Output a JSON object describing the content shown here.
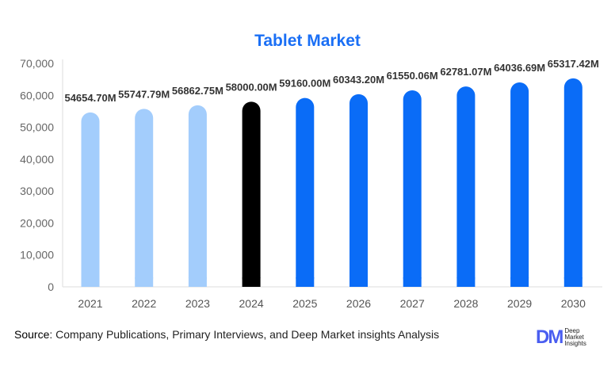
{
  "chart_data": {
    "type": "bar",
    "title": "Tablet Market",
    "categories": [
      "2021",
      "2022",
      "2023",
      "2024",
      "2025",
      "2026",
      "2027",
      "2028",
      "2029",
      "2030"
    ],
    "values": [
      54654.7,
      55747.79,
      56862.75,
      58000.0,
      59160.0,
      60343.2,
      61550.06,
      62781.07,
      64036.69,
      65317.42
    ],
    "data_labels": [
      "54654.70M",
      "55747.79M",
      "56862.75M",
      "58000.00M",
      "59160.00M",
      "60343.20M",
      "61550.06M",
      "62781.07M",
      "64036.69M",
      "65317.42M"
    ],
    "yticks": [
      "0",
      "10,000",
      "20,000",
      "30,000",
      "40,000",
      "50,000",
      "60,000",
      "70,000"
    ],
    "ylim": [
      0,
      70000
    ],
    "grid": false,
    "colors": {
      "historical": "#a3cdfc",
      "base_year": "#000000",
      "forecast": "#0a6cf7"
    },
    "bar_colors": [
      "#a3cdfc",
      "#a3cdfc",
      "#a3cdfc",
      "#000000",
      "#0a6cf7",
      "#0a6cf7",
      "#0a6cf7",
      "#0a6cf7",
      "#0a6cf7",
      "#0a6cf7"
    ]
  },
  "footer": {
    "source_label": "Source",
    "source_text": ": Company Publications, Primary Interviews, and Deep Market insights Analysis"
  },
  "logo": {
    "mark": "DM",
    "line1": "Deep",
    "line2": "Market",
    "line3": "Insights"
  }
}
